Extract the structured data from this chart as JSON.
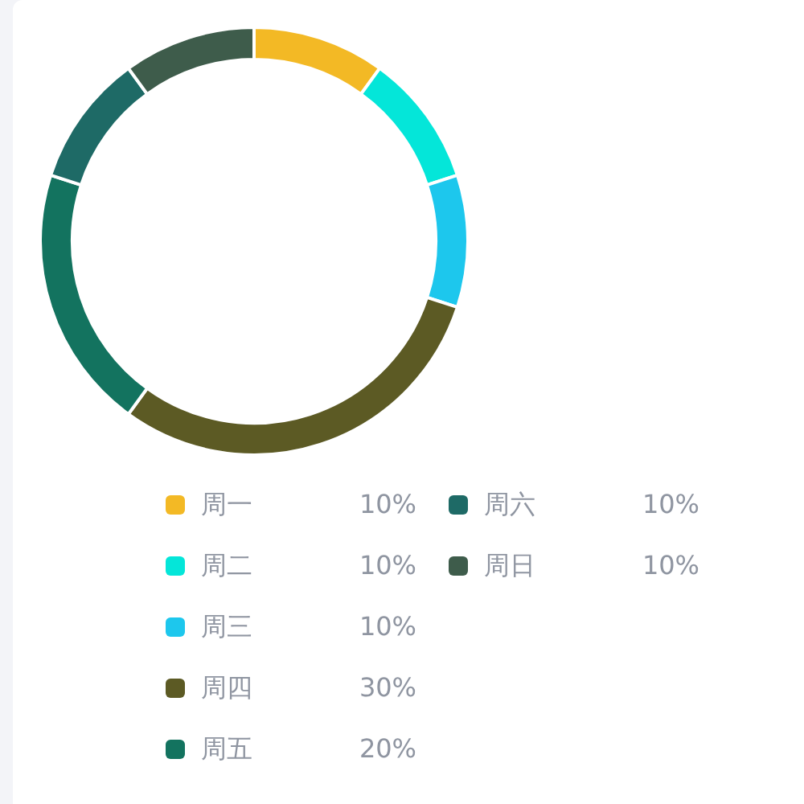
{
  "chart_data": {
    "type": "donut",
    "categories": [
      "周一",
      "周二",
      "周三",
      "周四",
      "周五",
      "周六",
      "周日"
    ],
    "values": [
      10,
      10,
      10,
      30,
      20,
      10,
      10
    ],
    "colors": [
      "#f3b925",
      "#04e6d9",
      "#1dc7ed",
      "#5c5a24",
      "#13735f",
      "#1e6a66",
      "#3e5c4b"
    ],
    "value_labels": [
      "10%",
      "10%",
      "10%",
      "30%",
      "20%",
      "10%",
      "10%"
    ],
    "legend": "bottom"
  }
}
